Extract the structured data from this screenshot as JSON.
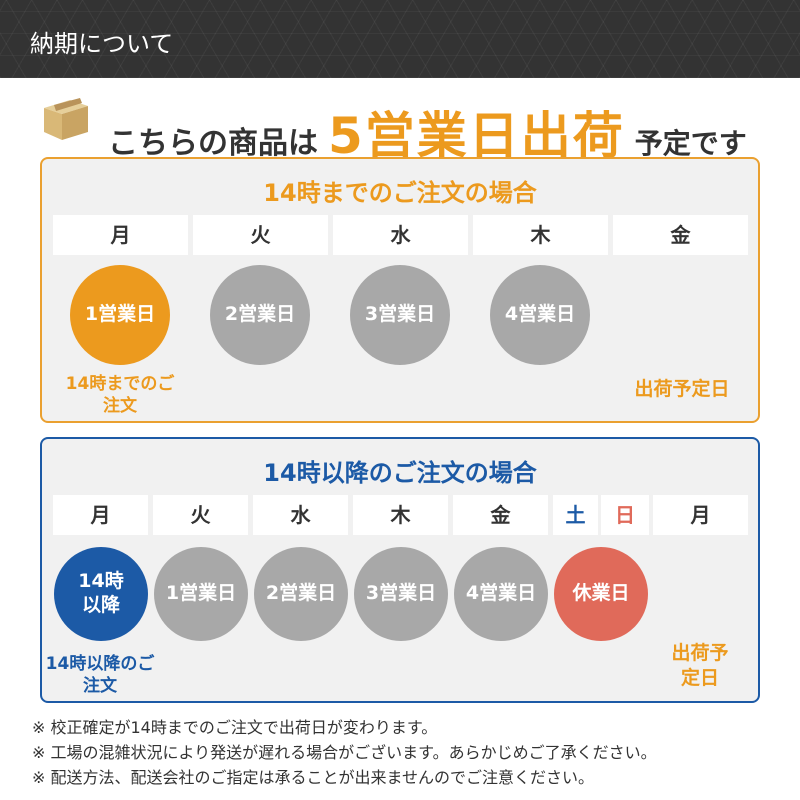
{
  "header": {
    "title": "納期について"
  },
  "headline": {
    "prefix": "こちらの商品は",
    "highlight": "5営業日出荷",
    "suffix": "予定です",
    "icon": "cardboard-box-icon"
  },
  "colors": {
    "orange": "#ec9a1e",
    "blue": "#1c5aa6",
    "gray": "#a8a8a8",
    "red": "#e06a5a",
    "header_bg": "#333333"
  },
  "before14": {
    "title": "14時までのご注文の場合",
    "days": [
      "月",
      "火",
      "水",
      "木",
      "金"
    ],
    "circles": [
      "1営業日",
      "2営業日",
      "3営業日",
      "4営業日"
    ],
    "order_label": "14時までのご注文",
    "ship_label": "出荷予定日"
  },
  "after14": {
    "title": "14時以降のご注文の場合",
    "days": [
      "月",
      "火",
      "水",
      "木",
      "金",
      "土",
      "日",
      "月"
    ],
    "circles": [
      "14時以降",
      "1営業日",
      "2営業日",
      "3営業日",
      "4営業日",
      "休業日"
    ],
    "order_label": "14時以降のご注文",
    "ship_label": "出荷予定日"
  },
  "notes": [
    "※ 校正確定が14時までのご注文で出荷日が変わります。",
    "※ 工場の混雑状況により発送が遅れる場合がございます。あらかじめご了承ください。",
    "※ 配送方法、配送会社のご指定は承ることが出来ませんのでご注意ください。"
  ]
}
